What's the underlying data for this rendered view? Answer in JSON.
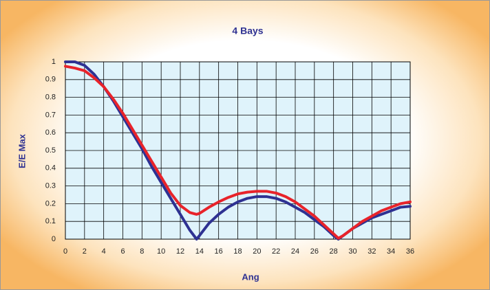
{
  "chart_data": {
    "type": "line",
    "title": "4 Bays",
    "xlabel": "Ang",
    "ylabel": "E/E Max",
    "x": [
      0,
      1,
      2,
      3,
      4,
      5,
      6,
      7,
      8,
      9,
      10,
      11,
      12,
      13,
      13.7,
      14,
      15,
      16,
      17,
      18,
      19,
      20,
      21,
      22,
      23,
      24,
      25,
      26,
      27,
      28,
      28.5,
      29,
      30,
      31,
      32,
      33,
      34,
      35,
      36
    ],
    "series": [
      {
        "name": "Blue",
        "color": "#2e3192",
        "values": [
          1.0,
          1.0,
          0.98,
          0.93,
          0.86,
          0.78,
          0.69,
          0.6,
          0.51,
          0.41,
          0.32,
          0.23,
          0.14,
          0.05,
          0,
          0.02,
          0.09,
          0.14,
          0.18,
          0.21,
          0.23,
          0.24,
          0.24,
          0.23,
          0.21,
          0.18,
          0.15,
          0.11,
          0.07,
          0.02,
          0,
          0.02,
          0.06,
          0.09,
          0.12,
          0.14,
          0.16,
          0.18,
          0.185
        ]
      },
      {
        "name": "Red",
        "color": "#e8232a",
        "values": [
          0.975,
          0.965,
          0.95,
          0.91,
          0.86,
          0.79,
          0.71,
          0.62,
          0.53,
          0.44,
          0.35,
          0.26,
          0.19,
          0.15,
          0.14,
          0.145,
          0.18,
          0.21,
          0.235,
          0.255,
          0.265,
          0.27,
          0.27,
          0.26,
          0.24,
          0.21,
          0.17,
          0.13,
          0.08,
          0.03,
          0.005,
          0.02,
          0.06,
          0.1,
          0.13,
          0.16,
          0.18,
          0.2,
          0.21
        ]
      }
    ],
    "xlim": [
      0,
      36
    ],
    "xticks": [
      0,
      2,
      4,
      6,
      8,
      10,
      12,
      14,
      16,
      18,
      20,
      22,
      24,
      26,
      28,
      30,
      32,
      34,
      36
    ],
    "ylim": [
      0,
      1
    ],
    "yticks": [
      0,
      0.1,
      0.2,
      0.3,
      0.4,
      0.5,
      0.6,
      0.7,
      0.8,
      0.9,
      1
    ],
    "grid": true,
    "plot_background": "#dff3fb"
  }
}
